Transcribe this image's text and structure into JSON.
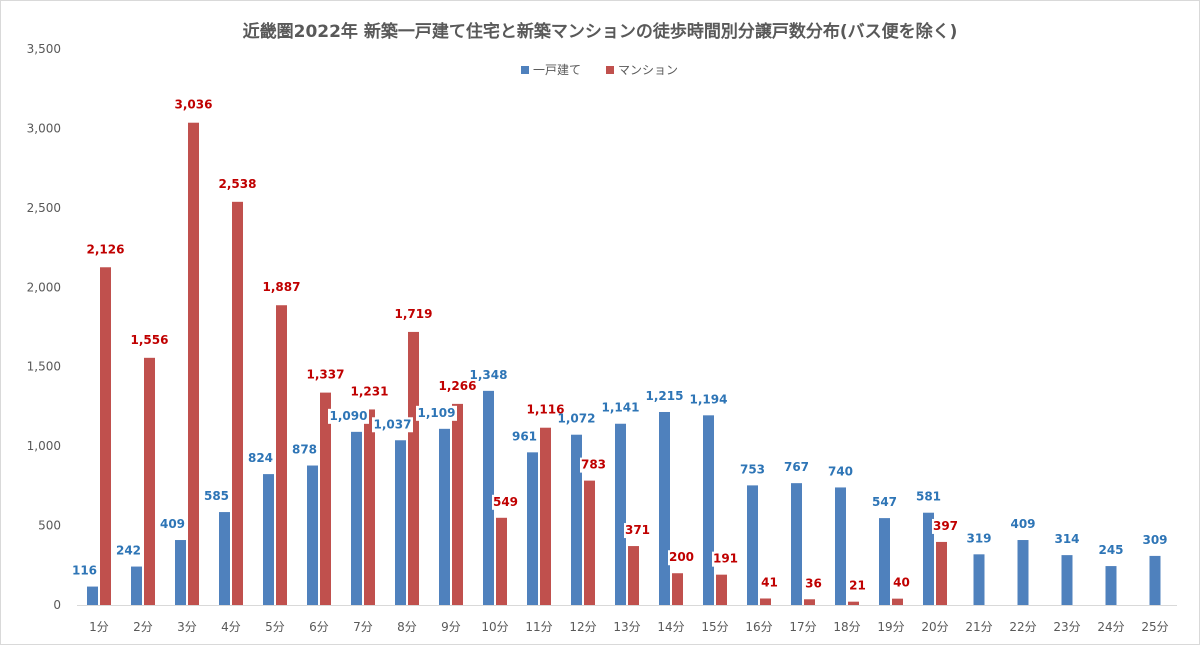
{
  "chart_data": {
    "type": "bar",
    "title": "近畿圏2022年  新築一戸建て住宅と新築マンションの徒歩時間別分譲戸数分布(バス便を除く)",
    "xlabel": "",
    "ylabel": "",
    "ylim": [
      0,
      3500
    ],
    "yticks": [
      0,
      500,
      1000,
      1500,
      2000,
      2500,
      3000,
      3500
    ],
    "ytick_labels": [
      "0",
      "500",
      "1,000",
      "1,500",
      "2,000",
      "2,500",
      "3,000",
      "3,500"
    ],
    "grid": false,
    "legend_position": "top-center",
    "categories": [
      "1分",
      "2分",
      "3分",
      "4分",
      "5分",
      "6分",
      "7分",
      "8分",
      "9分",
      "10分",
      "11分",
      "12分",
      "13分",
      "14分",
      "15分",
      "16分",
      "17分",
      "18分",
      "19分",
      "20分",
      "21分",
      "22分",
      "23分",
      "24分",
      "25分"
    ],
    "series": [
      {
        "name": "一戸建て",
        "color": "#4f81bd",
        "label_color": "#2e75b6",
        "values": [
          116,
          242,
          409,
          585,
          824,
          878,
          1090,
          1037,
          1109,
          1348,
          961,
          1072,
          1141,
          1215,
          1194,
          753,
          767,
          740,
          547,
          581,
          319,
          409,
          314,
          245,
          309
        ],
        "labels": [
          "116",
          "242",
          "409",
          "585",
          "824",
          "878",
          "1,090",
          "1,037",
          "1,109",
          "1,348",
          "961",
          "1,072",
          "1,141",
          "1,215",
          "1,194",
          "753",
          "767",
          "740",
          "547",
          "581",
          "319",
          "409",
          "314",
          "245",
          "309"
        ]
      },
      {
        "name": "マンション",
        "color": "#c0504d",
        "label_color": "#c00000",
        "values": [
          2126,
          1556,
          3036,
          2538,
          1887,
          1337,
          1231,
          1719,
          1266,
          549,
          1116,
          783,
          371,
          200,
          191,
          41,
          36,
          21,
          40,
          397,
          null,
          null,
          null,
          null,
          null
        ],
        "labels": [
          "2,126",
          "1,556",
          "3,036",
          "2,538",
          "1,887",
          "1,337",
          "1,231",
          "1,719",
          "1,266",
          "549",
          "1,116",
          "783",
          "371",
          "200",
          "191",
          "41",
          "36",
          "21",
          "40",
          "397",
          null,
          null,
          null,
          null,
          null
        ]
      }
    ]
  }
}
